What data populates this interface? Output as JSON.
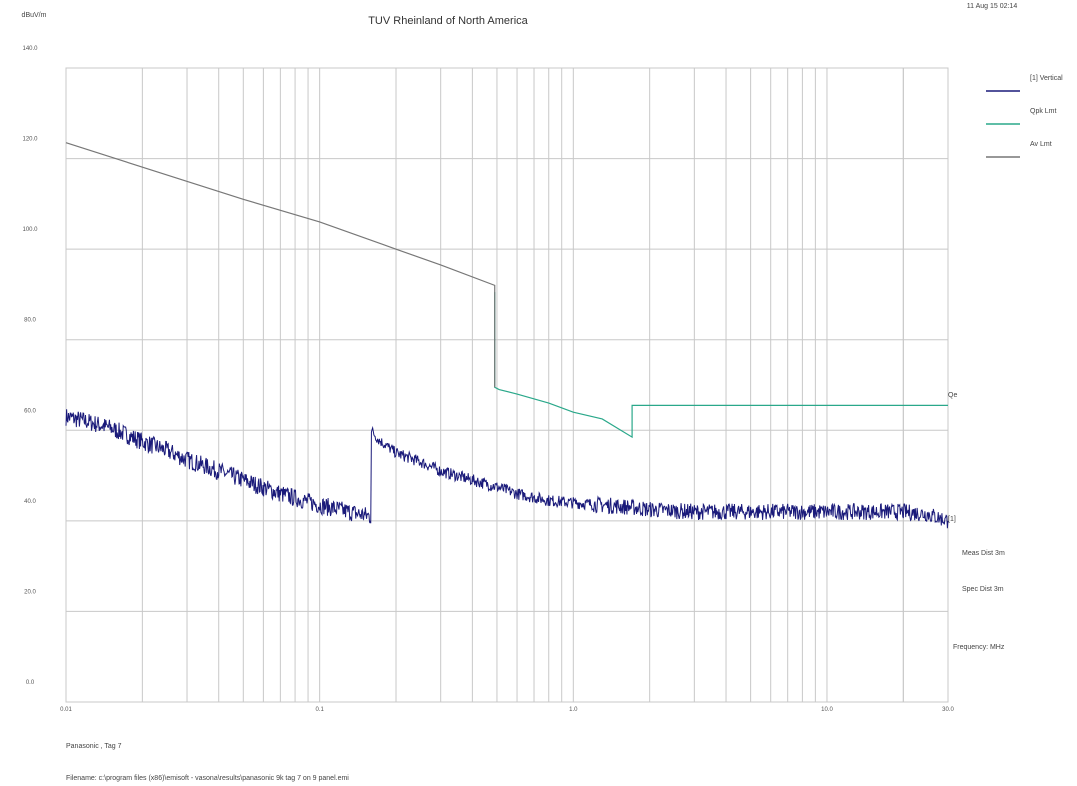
{
  "header": {
    "title": "TUV Rheinland of North America",
    "date": "11 Aug 15 02:14"
  },
  "chart_data": {
    "type": "line",
    "ylabel": "dBuV/m",
    "xlabel": "Frequency: MHz",
    "x_scale": "log",
    "xlim": [
      0.01,
      30.0
    ],
    "ylim": [
      0,
      140
    ],
    "yticks": [
      "140.0",
      "120.0",
      "100.0",
      "80.0",
      "60.0",
      "40.0",
      "20.0",
      "0.0"
    ],
    "xticks": [
      {
        "value": 0.01,
        "label": "0.01"
      },
      {
        "value": 0.1,
        "label": "0.1"
      },
      {
        "value": 1.0,
        "label": "1.0"
      },
      {
        "value": 10.0,
        "label": "10.0"
      },
      {
        "value": 30.0,
        "label": "30.0"
      }
    ],
    "grid": true,
    "legend_position": "right",
    "series": [
      {
        "name": "[1] Vertical",
        "color": "#1a1a7a",
        "x": [
          0.01,
          0.012,
          0.015,
          0.02,
          0.025,
          0.03,
          0.04,
          0.05,
          0.07,
          0.1,
          0.13,
          0.159,
          0.16,
          0.17,
          0.2,
          0.25,
          0.3,
          0.4,
          0.5,
          0.6,
          0.8,
          1.0,
          1.3,
          1.7,
          2.0,
          3.0,
          5.0,
          7.0,
          10.0,
          15.0,
          20.0,
          25.0,
          30.0
        ],
        "y": [
          63,
          62,
          60.5,
          57.5,
          55.5,
          53.5,
          51,
          49,
          46,
          43.5,
          42,
          41,
          60,
          58,
          55,
          53,
          51,
          49,
          47.5,
          46,
          44.5,
          44,
          43.5,
          43,
          42.5,
          42,
          42,
          42,
          42,
          42,
          42,
          41.5,
          40
        ]
      },
      {
        "name": "Qpk Lmt",
        "color": "#2aa88a",
        "x": [
          0.49,
          0.49,
          0.51,
          0.6,
          0.8,
          1.0,
          1.3,
          1.705,
          1.705,
          3.0,
          10.0,
          30.0
        ],
        "y": [
          90.5,
          69.5,
          69,
          68,
          66,
          64,
          62.5,
          58.5,
          65.5,
          65.5,
          65.5,
          65.5
        ]
      },
      {
        "name": "Av Lmt",
        "color": "#777777",
        "x": [
          0.01,
          0.05,
          0.1,
          0.2,
          0.3,
          0.49,
          0.49
        ],
        "y": [
          123.5,
          111,
          106,
          100,
          96.5,
          92,
          69.5
        ]
      }
    ],
    "annotations": {
      "limit_end_label": "Qe",
      "trace_end_label": "[1]",
      "meas_dist": "Meas Dist 3m",
      "spec_dist": "Spec Dist 3m"
    }
  },
  "footer": {
    "line1": "Panasonic , Tag 7",
    "line2": "Filename: c:\\program files (x86)\\emisoft - vasona\\results\\panasonic 9k tag 7 on 9 panel.emi"
  }
}
